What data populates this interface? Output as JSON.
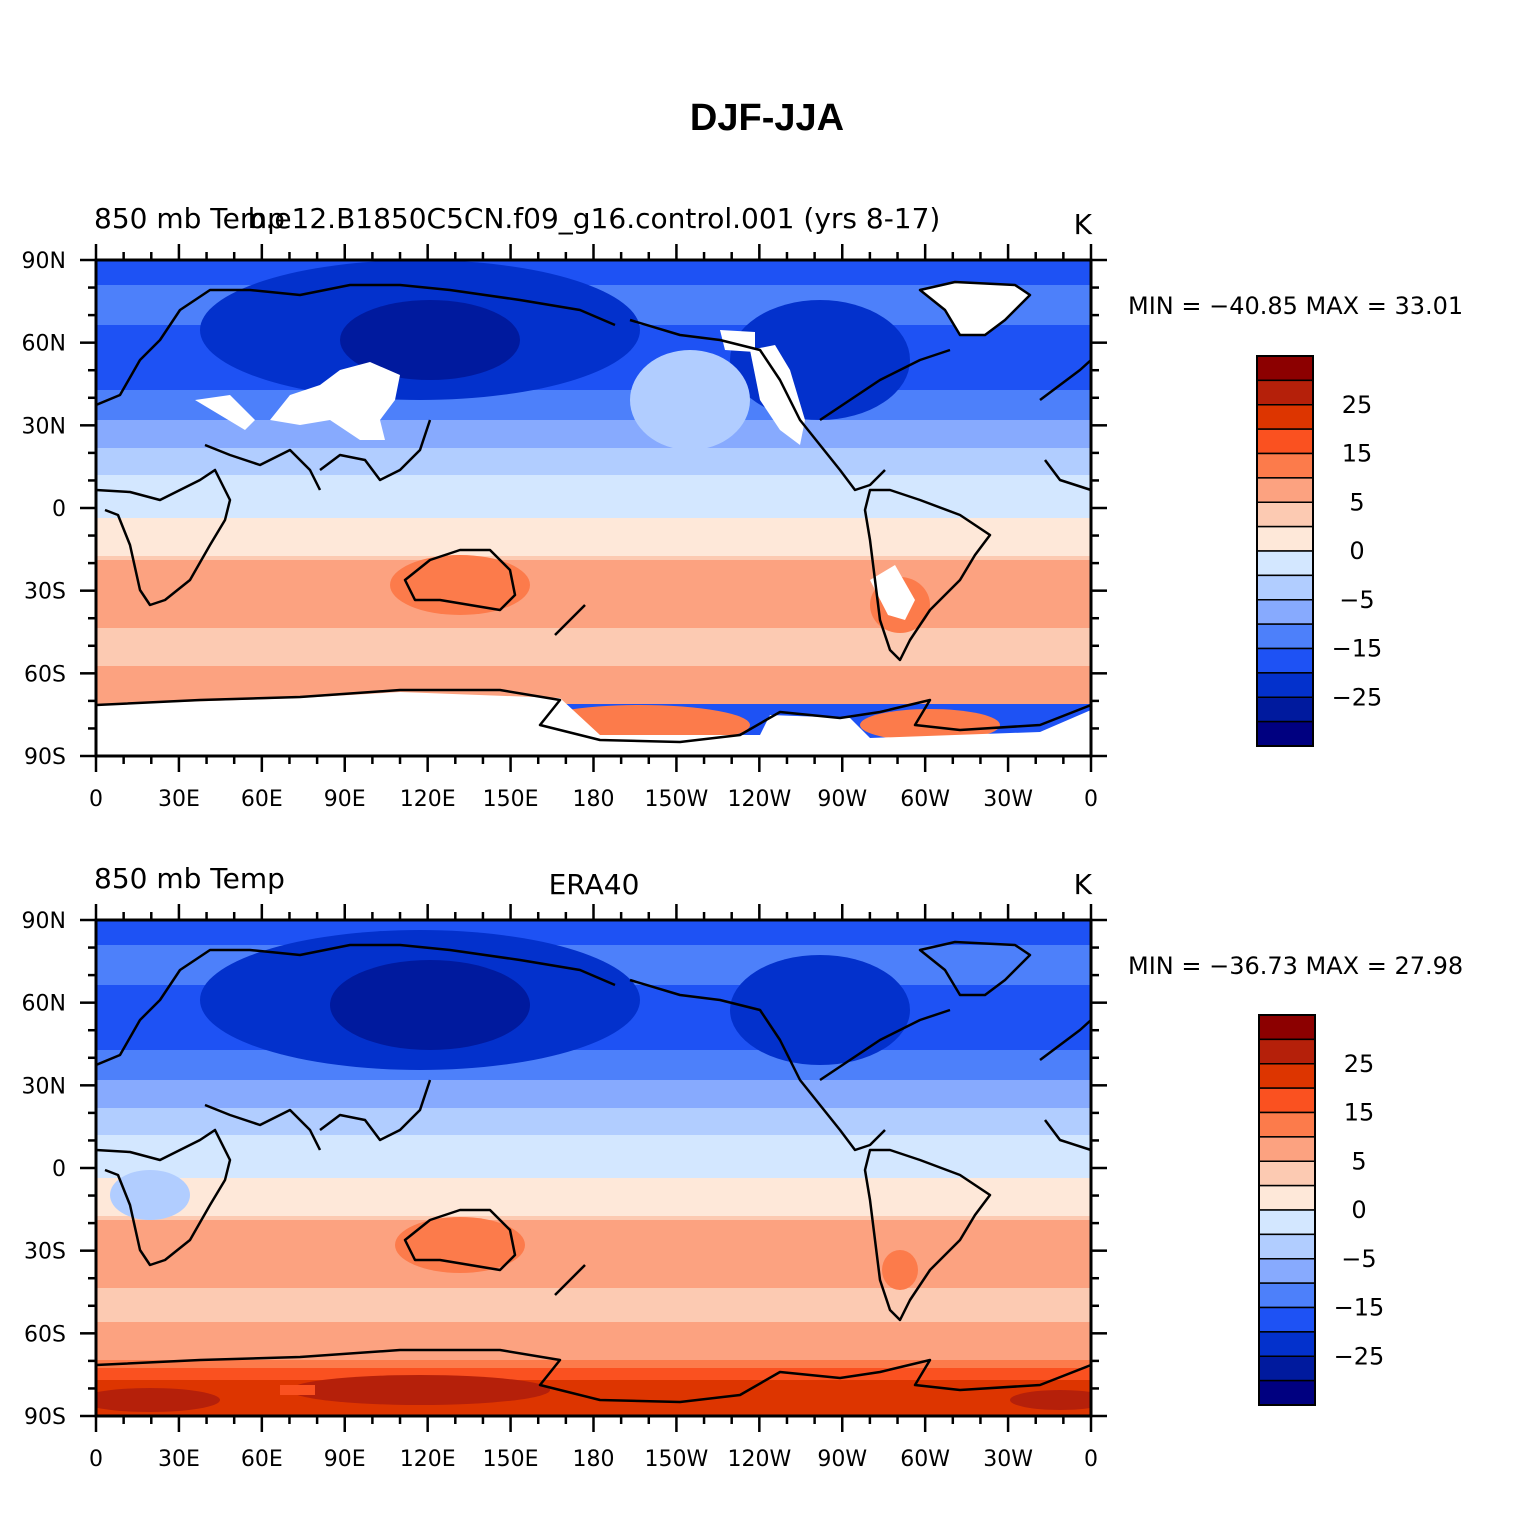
{
  "figure": {
    "title": "DJF-JJA"
  },
  "panels": [
    {
      "id": "model",
      "variable": "850 mb Temp",
      "case_name": "b.e12.B1850C5CN.f09_g16.control.001 (yrs 8-17)",
      "units": "K",
      "min_max": "MIN = −40.85 MAX =   33.01"
    },
    {
      "id": "obs",
      "variable": "850 mb Temp",
      "case_name": "ERA40",
      "units": "K",
      "min_max": "MIN = −36.73 MAX =   27.98"
    }
  ],
  "axes": {
    "lat_ticks": [
      "90N",
      "60N",
      "30N",
      "0",
      "30S",
      "60S",
      "90S"
    ],
    "lon_ticks": [
      "0",
      "30E",
      "60E",
      "90E",
      "120E",
      "150E",
      "180",
      "150W",
      "120W",
      "90W",
      "60W",
      "30W",
      "0"
    ]
  },
  "colorbar": {
    "labels": [
      "25",
      "15",
      "5",
      "0",
      "−5",
      "−15",
      "−25"
    ],
    "colors": [
      "#8c0000",
      "#b5200a",
      "#dd3500",
      "#fa5120",
      "#fc7b4b",
      "#fca280",
      "#fccab2",
      "#fee8d9",
      "#d3e7ff",
      "#b1cdff",
      "#87aafe",
      "#4d80fa",
      "#1e52f4",
      "#0331cc",
      "#001a9e",
      "#000080"
    ]
  },
  "chart_data": [
    {
      "type": "heatmap",
      "title": "850 mb Temp",
      "subtitle": "b.e12.B1850C5CN.f09_g16.control.001 (yrs 8-17)",
      "units": "K",
      "min": -40.85,
      "max": 33.01,
      "x_range": [
        0,
        360
      ],
      "y_range": [
        -90,
        90
      ],
      "zonal_profile": {
        "lat": [
          90,
          75,
          60,
          45,
          30,
          15,
          0,
          -15,
          -30,
          -45,
          -60,
          -75,
          -90
        ],
        "value": [
          -15,
          -18,
          -22,
          -17,
          -9,
          -3,
          0,
          3,
          8,
          6,
          4,
          8,
          10
        ]
      }
    },
    {
      "type": "heatmap",
      "title": "850 mb Temp",
      "subtitle": "ERA40",
      "units": "K",
      "min": -36.73,
      "max": 27.98,
      "x_range": [
        0,
        360
      ],
      "y_range": [
        -90,
        90
      ],
      "zonal_profile": {
        "lat": [
          90,
          75,
          60,
          45,
          30,
          15,
          0,
          -15,
          -30,
          -45,
          -60,
          -75,
          -90
        ],
        "value": [
          -15,
          -19,
          -23,
          -18,
          -9,
          -3,
          0,
          3,
          8,
          6,
          6,
          15,
          25
        ]
      }
    }
  ]
}
